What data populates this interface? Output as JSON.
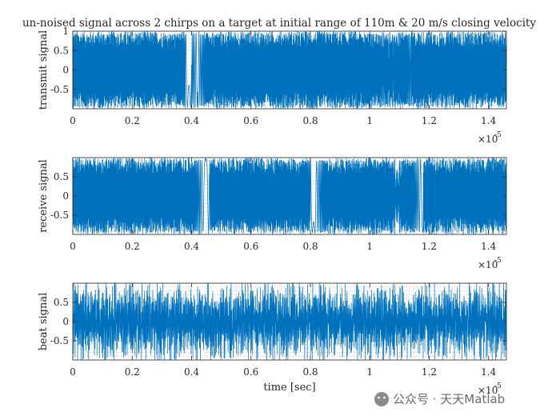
{
  "title": "un-noised signal across 2 chirps on a target at initial range of 110m & 20 m/s closing velocity",
  "xlabel": "time [sec]",
  "exponent_label": "×10",
  "exponent_value": "-5",
  "watermark": "公众号 · 天天Matlab",
  "colors": {
    "line": "#0072BD",
    "axes": "#262626",
    "grid": "#9a9a9a"
  },
  "chart_data": [
    {
      "type": "line",
      "ylabel": "transmit signal",
      "xlim": [
        0,
        1.46e-05
      ],
      "ylim": [
        -1,
        1
      ],
      "xticks": [
        0,
        0.2,
        0.4,
        0.6,
        0.8,
        1,
        1.2,
        1.4
      ],
      "xtick_labels": [
        "0",
        "0.2",
        "0.4",
        "0.6",
        "0.8",
        "1",
        "1.2",
        "1.4"
      ],
      "yticks": [
        -0.5,
        0,
        0.5,
        1
      ],
      "ytick_labels": [
        "-0.5",
        "0",
        "0.5",
        "1"
      ],
      "amplitude": 1.0,
      "grid": "minor",
      "slow_regions_x_e5": [
        0.38,
        0.42,
        1.04,
        1.08
      ]
    },
    {
      "type": "line",
      "ylabel": "receive signal",
      "xlim": [
        0,
        1.46e-05
      ],
      "ylim": [
        -1,
        1
      ],
      "xticks": [
        0,
        0.2,
        0.4,
        0.6,
        0.8,
        1,
        1.2,
        1.4
      ],
      "xtick_labels": [
        "0",
        "0.2",
        "0.4",
        "0.6",
        "0.8",
        "1",
        "1.2",
        "1.4"
      ],
      "yticks": [
        -0.5,
        0,
        0.5
      ],
      "ytick_labels": [
        "-0.5",
        "0",
        "0.5"
      ],
      "amplitude": 1.0,
      "grid": "minor",
      "slow_regions_x_e5": [
        0.46,
        0.8,
        1.12
      ]
    },
    {
      "type": "line",
      "ylabel": "beat signal",
      "xlim": [
        0,
        1.46e-05
      ],
      "ylim": [
        -1,
        1
      ],
      "xticks": [
        0,
        0.2,
        0.4,
        0.6,
        0.8,
        1,
        1.2,
        1.4
      ],
      "xtick_labels": [
        "0",
        "0.2",
        "0.4",
        "0.6",
        "0.8",
        "1",
        "1.2",
        "1.4"
      ],
      "yticks": [
        -0.5,
        0,
        0.5
      ],
      "ytick_labels": [
        "-0.5",
        "0",
        "0.5"
      ],
      "amplitude": 0.95,
      "grid": "minor"
    }
  ]
}
